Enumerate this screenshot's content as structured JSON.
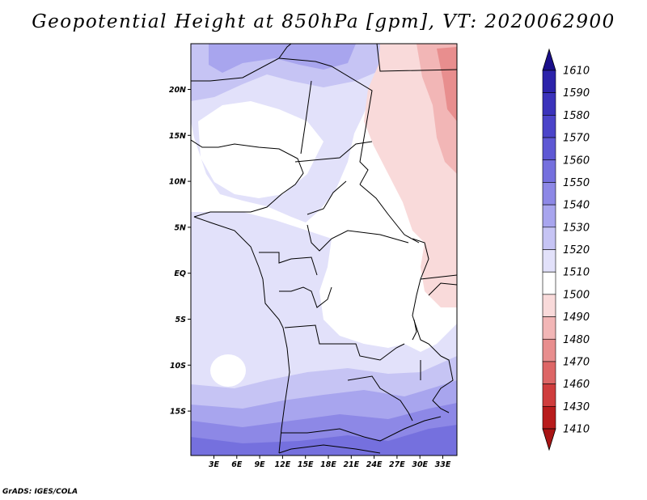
{
  "title": "Geopotential Height at 850hPa [gpm], VT: 2020062900",
  "credit": "GrADS: IGES/COLA",
  "map": {
    "lon_ticks": [
      "3E",
      "6E",
      "9E",
      "12E",
      "15E",
      "18E",
      "21E",
      "24E",
      "27E",
      "30E",
      "33E"
    ],
    "lat_ticks": [
      "20N",
      "15N",
      "10N",
      "5N",
      "EQ",
      "5S",
      "10S",
      "15S"
    ]
  },
  "colorbar": {
    "levels": [
      "1610",
      "1590",
      "1580",
      "1570",
      "1560",
      "1550",
      "1540",
      "1530",
      "1520",
      "1510",
      "1500",
      "1490",
      "1480",
      "1470",
      "1460",
      "1430",
      "1410"
    ],
    "colors": [
      "#1e1496",
      "#2c23aa",
      "#3b33bb",
      "#4b44c9",
      "#5e58d4",
      "#7570de",
      "#8d88e6",
      "#a8a5ee",
      "#c6c4f4",
      "#e2e1fa",
      "#ffffff",
      "#f9dada",
      "#f2b6b6",
      "#e88e8e",
      "#dd6666",
      "#cf3d3d",
      "#b81c1c",
      "#9e1010"
    ],
    "top_arrow_color": "#1a0f8a",
    "bottom_arrow_color": "#a81414"
  }
}
